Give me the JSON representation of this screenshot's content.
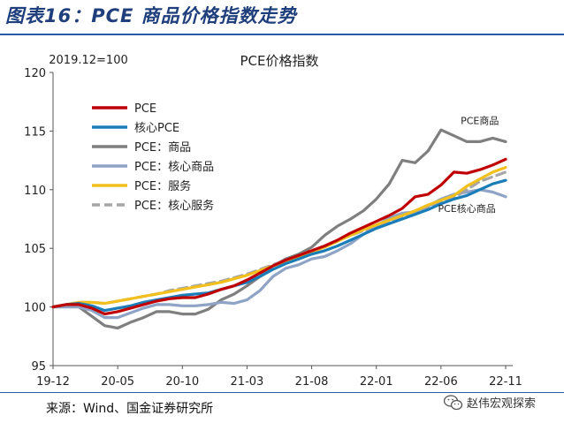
{
  "figure": {
    "title": "图表16：PCE 商品价格指数走势",
    "source": "来源：Wind、国金证券研究所",
    "watermark": "赵伟宏观探索",
    "watermark_icon": "wechat-icon"
  },
  "chart_data": {
    "type": "line",
    "title": "PCE价格指数",
    "subtitle": "2019.12=100",
    "xlabel": "",
    "ylabel": "",
    "ylim": [
      95,
      120
    ],
    "yticks": [
      95,
      100,
      105,
      110,
      115,
      120
    ],
    "xtick_labels": [
      "19-12",
      "20-05",
      "20-10",
      "21-03",
      "21-08",
      "22-01",
      "22-06",
      "22-11"
    ],
    "grid": false,
    "legend_position": "top-left",
    "x": [
      "19-12",
      "20-01",
      "20-02",
      "20-03",
      "20-04",
      "20-05",
      "20-06",
      "20-07",
      "20-08",
      "20-09",
      "20-10",
      "20-11",
      "20-12",
      "21-01",
      "21-02",
      "21-03",
      "21-04",
      "21-05",
      "21-06",
      "21-07",
      "21-08",
      "21-09",
      "21-10",
      "21-11",
      "21-12",
      "22-01",
      "22-02",
      "22-03",
      "22-04",
      "22-05",
      "22-06",
      "22-07",
      "22-08",
      "22-09",
      "22-10",
      "22-11"
    ],
    "series": [
      {
        "name": "PCE",
        "color": "#c00000",
        "dash": "solid",
        "values": [
          100.0,
          100.2,
          100.2,
          99.9,
          99.4,
          99.6,
          99.9,
          100.2,
          100.5,
          100.7,
          100.8,
          100.8,
          101.1,
          101.5,
          101.8,
          102.3,
          102.9,
          103.5,
          104.0,
          104.4,
          104.8,
          105.2,
          105.7,
          106.3,
          106.8,
          107.3,
          107.8,
          108.4,
          109.4,
          109.6,
          110.4,
          111.5,
          111.4,
          111.7,
          112.1,
          112.6
        ]
      },
      {
        "name": "核心PCE",
        "color": "#1a7db8",
        "dash": "solid",
        "values": [
          100.0,
          100.2,
          100.3,
          100.1,
          99.7,
          99.9,
          100.1,
          100.4,
          100.6,
          100.8,
          101.0,
          101.1,
          101.2,
          101.5,
          101.8,
          102.1,
          102.6,
          103.2,
          103.7,
          104.1,
          104.5,
          104.8,
          105.2,
          105.7,
          106.2,
          106.7,
          107.1,
          107.5,
          107.9,
          108.3,
          108.8,
          109.2,
          109.5,
          110.0,
          110.5,
          110.8
        ]
      },
      {
        "name": "PCE：商品",
        "color": "#7f7f7f",
        "dash": "solid",
        "values": [
          100.0,
          100.1,
          100.0,
          99.2,
          98.4,
          98.2,
          98.7,
          99.1,
          99.6,
          99.6,
          99.4,
          99.4,
          99.8,
          100.6,
          101.1,
          101.8,
          102.6,
          103.5,
          104.1,
          104.5,
          105.1,
          106.1,
          106.9,
          107.5,
          108.2,
          109.2,
          110.5,
          112.5,
          112.3,
          113.3,
          115.1,
          114.6,
          114.1,
          114.1,
          114.4,
          114.1
        ]
      },
      {
        "name": "PCE：核心商品",
        "color": "#8ea3c6",
        "dash": "solid",
        "values": [
          100.0,
          100.0,
          100.0,
          99.7,
          99.1,
          99.1,
          99.5,
          99.9,
          100.2,
          100.2,
          100.1,
          100.1,
          100.2,
          100.4,
          100.3,
          100.6,
          101.4,
          102.6,
          103.3,
          103.6,
          104.1,
          104.3,
          104.8,
          105.4,
          106.2,
          106.9,
          107.6,
          108.0,
          108.1,
          108.6,
          109.2,
          109.6,
          109.8,
          110.0,
          109.8,
          109.4
        ]
      },
      {
        "name": "PCE：服务",
        "color": "#f2c01d",
        "dash": "solid",
        "values": [
          100.0,
          100.2,
          100.4,
          100.4,
          100.3,
          100.5,
          100.7,
          100.9,
          101.1,
          101.3,
          101.5,
          101.7,
          101.9,
          102.1,
          102.4,
          102.7,
          103.1,
          103.5,
          103.9,
          104.3,
          104.7,
          105.1,
          105.6,
          106.1,
          106.6,
          107.0,
          107.4,
          107.8,
          108.2,
          108.7,
          109.1,
          109.5,
          110.3,
          110.9,
          111.5,
          111.9
        ]
      },
      {
        "name": "PCE：核心服务",
        "color": "#a6a6a6",
        "dash": "dashed",
        "values": [
          100.0,
          100.2,
          100.4,
          100.4,
          100.3,
          100.5,
          100.7,
          100.9,
          101.1,
          101.4,
          101.6,
          101.8,
          102.0,
          102.2,
          102.5,
          102.8,
          103.2,
          103.6,
          104.0,
          104.4,
          104.8,
          105.2,
          105.7,
          106.1,
          106.5,
          106.9,
          107.3,
          107.7,
          108.1,
          108.5,
          108.9,
          109.3,
          110.0,
          110.7,
          111.1,
          111.5
        ]
      }
    ],
    "annotations": [
      {
        "text": "PCE商品",
        "at": "22-09",
        "value": 115.6
      },
      {
        "text": "PCE核心商品",
        "at": "22-08",
        "value": 108.1
      }
    ]
  }
}
